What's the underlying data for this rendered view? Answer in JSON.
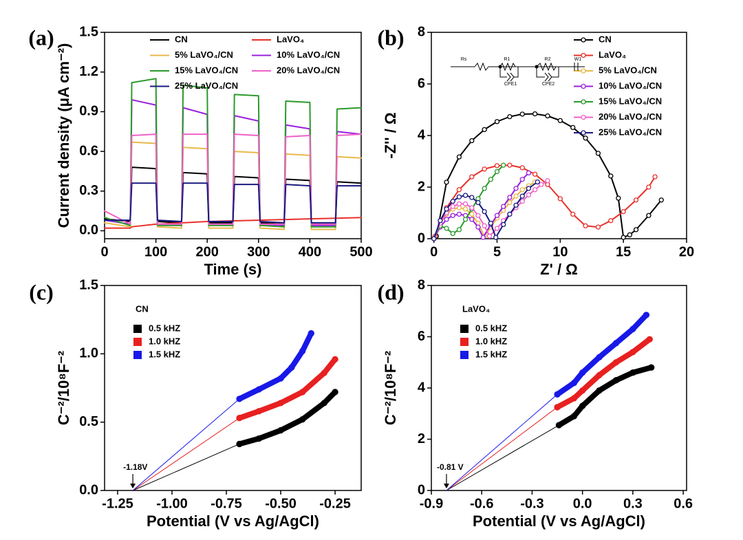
{
  "chart_data": [
    {
      "type": "line",
      "panel_label": "(a)",
      "xlabel": "Time (s)",
      "ylabel": "Current density (μA cm⁻²)",
      "xlim": [
        0,
        500
      ],
      "ylim": [
        -0.06,
        1.5
      ],
      "xticks": [
        0,
        100,
        200,
        300,
        400,
        500
      ],
      "yticks": [
        {
          "value": 0,
          "label": "0.0"
        },
        0.3,
        0.6,
        0.9,
        1.2,
        1.5
      ],
      "x": [
        0,
        50,
        53,
        100,
        103,
        150,
        153,
        200,
        203,
        250,
        253,
        300,
        303,
        350,
        353,
        400,
        403,
        450,
        453,
        500
      ],
      "series": [
        {
          "name": "CN",
          "color": "#000000",
          "values": [
            0.09,
            0.07,
            0.48,
            0.47,
            0.07,
            0.06,
            0.44,
            0.43,
            0.06,
            0.06,
            0.41,
            0.4,
            0.06,
            0.05,
            0.39,
            0.38,
            0.05,
            0.05,
            0.37,
            0.36
          ]
        },
        {
          "name": "LaVO₄",
          "color": "#e8302a",
          "values": [
            0.02,
            0.02,
            0.03,
            0.05,
            0.05,
            0.06,
            0.06,
            0.07,
            0.07,
            0.075,
            0.075,
            0.08,
            0.08,
            0.085,
            0.085,
            0.09,
            0.09,
            0.095,
            0.095,
            0.1
          ]
        },
        {
          "name": "5%  LaVO₄/CN",
          "color": "#e8b84a",
          "values": [
            0.06,
            0.03,
            0.67,
            0.66,
            0.03,
            0.02,
            0.63,
            0.62,
            0.02,
            0.02,
            0.6,
            0.59,
            0.02,
            0.01,
            0.58,
            0.57,
            0.01,
            0.01,
            0.56,
            0.55
          ]
        },
        {
          "name": "10% LaVO₄/CN",
          "color": "#9a1fe0",
          "values": [
            0.08,
            0.05,
            0.99,
            0.95,
            0.05,
            0.05,
            0.93,
            0.88,
            0.05,
            0.05,
            0.87,
            0.83,
            0.05,
            0.04,
            0.8,
            0.77,
            0.04,
            0.04,
            0.75,
            0.73
          ]
        },
        {
          "name": "15% LaVO₄/CN",
          "color": "#2a9a2a",
          "values": [
            0.1,
            0.04,
            1.12,
            1.15,
            0.04,
            0.04,
            1.1,
            1.08,
            0.04,
            0.04,
            1.03,
            1.02,
            0.04,
            0.03,
            0.98,
            0.97,
            0.03,
            0.03,
            0.92,
            0.93
          ]
        },
        {
          "name": "20% LaVO₄/CN",
          "color": "#f060c8",
          "values": [
            0.15,
            0.05,
            0.72,
            0.73,
            0.05,
            0.05,
            0.73,
            0.73,
            0.05,
            0.05,
            0.73,
            0.72,
            0.05,
            0.05,
            0.71,
            0.72,
            0.05,
            0.05,
            0.72,
            0.73
          ]
        },
        {
          "name": "25% LaVO₄/CN",
          "color": "#1a1a80",
          "values": [
            0.08,
            0.08,
            0.36,
            0.36,
            0.08,
            0.07,
            0.36,
            0.36,
            0.07,
            0.07,
            0.35,
            0.35,
            0.07,
            0.06,
            0.35,
            0.34,
            0.06,
            0.06,
            0.34,
            0.34
          ]
        }
      ]
    },
    {
      "type": "line",
      "markers": true,
      "panel_label": "(b)",
      "xlabel": "Z' / Ω",
      "ylabel": "-Z'' / Ω",
      "xlim": [
        -0.2,
        20
      ],
      "ylim": [
        0,
        8
      ],
      "xticks": [
        0,
        5,
        10,
        15,
        20
      ],
      "yticks": [
        0,
        2,
        4,
        6,
        8
      ],
      "inset_labels": [
        "Rs",
        "R1",
        "CPE1",
        "R2",
        "CPE2",
        "W1"
      ],
      "series": [
        {
          "name": "CN",
          "color": "#000000",
          "x": [
            0.2,
            1,
            2,
            3,
            4,
            5,
            6,
            7,
            8,
            9,
            10,
            11,
            12,
            13,
            14,
            14.6,
            15,
            15.5,
            16,
            17,
            18
          ],
          "values": [
            0.1,
            2.19,
            3.17,
            3.8,
            4.23,
            4.54,
            4.73,
            4.83,
            4.84,
            4.76,
            4.58,
            4.31,
            3.9,
            3.31,
            2.43,
            1.57,
            0.05,
            0.15,
            0.35,
            0.9,
            1.5
          ]
        },
        {
          "name": "LaVO₄",
          "color": "#e8302a",
          "x": [
            0.1,
            1,
            2,
            3,
            4,
            5,
            6,
            7,
            8,
            9,
            10,
            11,
            12,
            13,
            14,
            15,
            16,
            17,
            17.5
          ],
          "values": [
            0.1,
            1.2,
            1.9,
            2.4,
            2.7,
            2.83,
            2.85,
            2.75,
            2.5,
            2.1,
            1.55,
            0.95,
            0.5,
            0.45,
            0.7,
            1.05,
            1.5,
            2.0,
            2.4
          ]
        },
        {
          "name": "5%  LaVO₄/CN",
          "color": "#e8b84a",
          "x": [
            0,
            0.5,
            1,
            1.5,
            2,
            2.5,
            3,
            3.5,
            4,
            4.5,
            5,
            5.5,
            6,
            6.5,
            7,
            7.5,
            8
          ],
          "values": [
            0,
            0.6,
            0.95,
            1.15,
            1.2,
            1.15,
            0.95,
            0.6,
            0.1,
            0.45,
            0.8,
            1.1,
            1.4,
            1.65,
            1.9,
            2.05,
            2.2
          ]
        },
        {
          "name": "10% LaVO₄/CN",
          "color": "#9a1fe0",
          "x": [
            0,
            0.5,
            1,
            1.5,
            2,
            2.5,
            3,
            3.5,
            3.9,
            4.5,
            5,
            5.5,
            6,
            6.5,
            7,
            7.5
          ],
          "values": [
            0,
            0.45,
            0.75,
            0.9,
            0.95,
            0.9,
            0.75,
            0.45,
            0.05,
            0.55,
            0.9,
            1.25,
            1.6,
            1.95,
            2.3,
            2.55
          ]
        },
        {
          "name": "15% LaVO₄/CN",
          "color": "#2a9a2a",
          "x": [
            0,
            0.5,
            1,
            1.5,
            2,
            2.5,
            3,
            3.5,
            4,
            4.5,
            5,
            5.5
          ],
          "values": [
            0,
            0.5,
            0.4,
            0.2,
            0.35,
            0.75,
            1.15,
            1.55,
            1.95,
            2.3,
            2.6,
            2.85
          ]
        },
        {
          "name": "20% LaVO₄/CN",
          "color": "#f060c8",
          "x": [
            0,
            0.5,
            1,
            1.5,
            2,
            2.5,
            3,
            3.5,
            4,
            4.4,
            5,
            5.5,
            6,
            6.5,
            7,
            7.5,
            8,
            8.5,
            9
          ],
          "values": [
            0,
            0.6,
            1.0,
            1.25,
            1.35,
            1.35,
            1.2,
            0.9,
            0.5,
            0.1,
            0.4,
            0.7,
            0.95,
            1.2,
            1.45,
            1.7,
            1.9,
            2.1,
            2.25
          ]
        },
        {
          "name": "25% LaVO₄/CN",
          "color": "#1a1a80",
          "x": [
            0,
            0.5,
            1,
            1.5,
            2,
            2.5,
            3,
            3.5,
            4,
            4.5,
            4.9,
            5.5,
            6,
            6.5,
            7,
            7.5,
            8.2
          ],
          "values": [
            0,
            0.7,
            1.15,
            1.45,
            1.62,
            1.68,
            1.6,
            1.4,
            1.05,
            0.6,
            0.05,
            0.55,
            0.95,
            1.3,
            1.65,
            1.95,
            2.2
          ]
        }
      ]
    },
    {
      "type": "scatter",
      "panel_label": "(c)",
      "label": "CN",
      "xlabel": "Potential (V vs Ag/AgCl)",
      "ylabel": "C⁻²/10⁸F⁻²",
      "xlim": [
        -1.31,
        -0.13
      ],
      "ylim": [
        0,
        1.5
      ],
      "xticks": [
        -1.25,
        {
          "value": -1,
          "label": "-1.00"
        },
        -0.75,
        {
          "value": -0.5,
          "label": "-0.50"
        },
        -0.25
      ],
      "yticks": [
        {
          "value": 0,
          "label": "0.0"
        },
        0.5,
        {
          "value": 1,
          "label": "1.0"
        },
        1.5
      ],
      "annotation": {
        "text": "-1.18V",
        "x": -1.18
      },
      "series": [
        {
          "name": "0.5 kHZ",
          "color": "#000000",
          "x": [
            -0.69,
            -0.6,
            -0.5,
            -0.4,
            -0.3,
            -0.25
          ],
          "values": [
            0.34,
            0.38,
            0.44,
            0.52,
            0.64,
            0.72
          ],
          "fit_x": [
            -1.18,
            -0.69
          ],
          "fit_values": [
            0,
            0.34
          ]
        },
        {
          "name": "1.0 kHZ",
          "color": "#e82020",
          "x": [
            -0.69,
            -0.6,
            -0.5,
            -0.4,
            -0.3,
            -0.25
          ],
          "values": [
            0.53,
            0.58,
            0.64,
            0.72,
            0.86,
            0.96
          ],
          "fit_x": [
            -1.18,
            -0.69
          ],
          "fit_values": [
            0,
            0.53
          ]
        },
        {
          "name": "1.5 kHZ",
          "color": "#1818e8",
          "x": [
            -0.69,
            -0.6,
            -0.5,
            -0.45,
            -0.4,
            -0.36
          ],
          "values": [
            0.67,
            0.74,
            0.82,
            0.9,
            1.02,
            1.15
          ],
          "fit_x": [
            -1.18,
            -0.69
          ],
          "fit_values": [
            0,
            0.67
          ]
        }
      ]
    },
    {
      "type": "scatter",
      "panel_label": "(d)",
      "label": "LaVO₄",
      "xlabel": "Potential (V vs Ag/AgCl)",
      "ylabel": "C⁻²/10⁸F⁻²",
      "xlim": [
        -0.9,
        0.62
      ],
      "ylim": [
        0,
        8
      ],
      "xticks": [
        -0.9,
        -0.6,
        -0.3,
        {
          "value": 0,
          "label": "0.0"
        },
        0.3,
        0.6
      ],
      "yticks": [
        0,
        2,
        4,
        6,
        8
      ],
      "annotation": {
        "text": "-0.81 V",
        "x": -0.81
      },
      "series": [
        {
          "name": "0.5 kHZ",
          "color": "#000000",
          "x": [
            -0.14,
            -0.05,
            0,
            0.1,
            0.2,
            0.3,
            0.41
          ],
          "values": [
            2.55,
            2.9,
            3.3,
            3.9,
            4.3,
            4.6,
            4.8
          ],
          "fit_x": [
            -0.81,
            -0.14
          ],
          "fit_values": [
            0,
            2.55
          ]
        },
        {
          "name": "1.0 kHZ",
          "color": "#e82020",
          "x": [
            -0.15,
            -0.05,
            0,
            0.1,
            0.2,
            0.3,
            0.4
          ],
          "values": [
            3.25,
            3.6,
            3.9,
            4.5,
            5.0,
            5.4,
            5.9
          ],
          "fit_x": [
            -0.81,
            -0.15
          ],
          "fit_values": [
            0,
            3.25
          ]
        },
        {
          "name": "1.5 kHZ",
          "color": "#1818e8",
          "x": [
            -0.15,
            -0.05,
            0,
            0.1,
            0.2,
            0.3,
            0.38
          ],
          "values": [
            3.75,
            4.2,
            4.6,
            5.2,
            5.75,
            6.3,
            6.85
          ],
          "fit_x": [
            -0.81,
            -0.15
          ],
          "fit_values": [
            0,
            3.75
          ]
        }
      ]
    }
  ]
}
